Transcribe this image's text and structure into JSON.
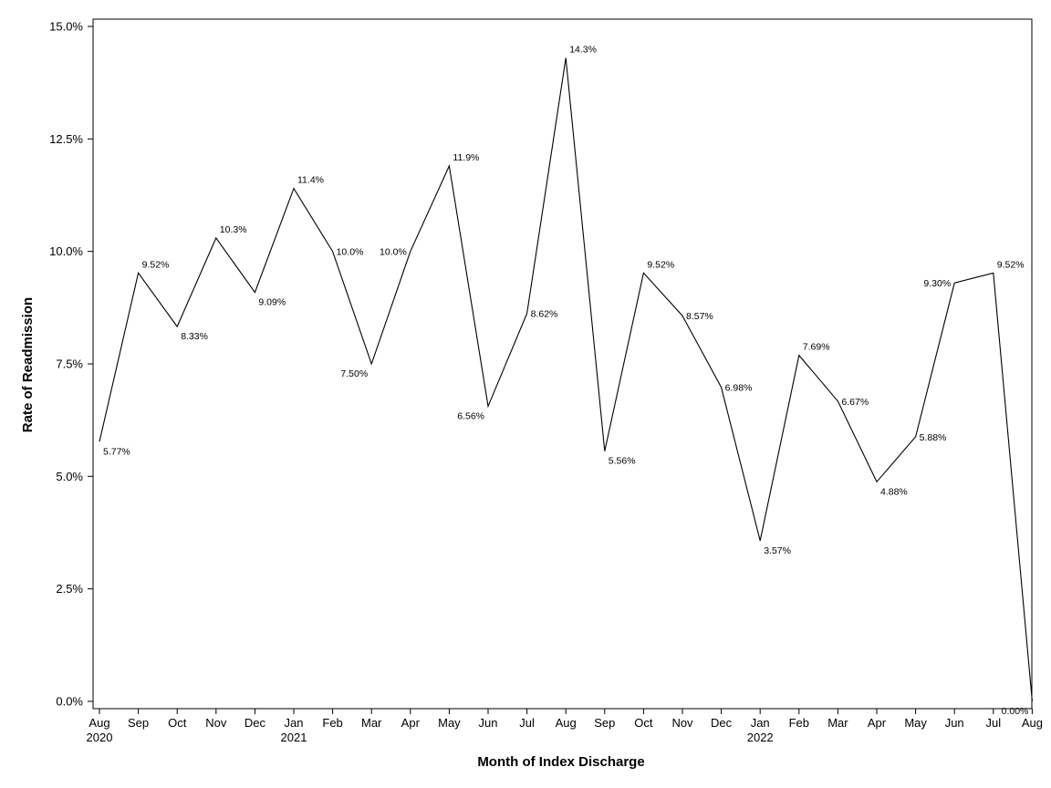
{
  "chart_data": {
    "type": "line",
    "title": "",
    "xlabel": "Month of Index Discharge",
    "ylabel": "Rate of Readmission",
    "ylim": [
      0,
      15
    ],
    "grid": false,
    "y_ticks": [
      "0.0%",
      "2.5%",
      "5.0%",
      "7.5%",
      "10.0%",
      "12.5%",
      "15.0%"
    ],
    "y_tick_values": [
      0,
      2.5,
      5,
      7.5,
      10,
      12.5,
      15
    ],
    "categories": [
      "Aug",
      "Sep",
      "Oct",
      "Nov",
      "Dec",
      "Jan",
      "Feb",
      "Mar",
      "Apr",
      "May",
      "Jun",
      "Jul",
      "Aug",
      "Sep",
      "Oct",
      "Nov",
      "Dec",
      "Jan",
      "Feb",
      "Mar",
      "Apr",
      "May",
      "Jun",
      "Jul",
      "Aug"
    ],
    "year_labels": [
      "2020",
      "",
      "",
      "",
      "",
      "2021",
      "",
      "",
      "",
      "",
      "",
      "",
      "",
      "",
      "",
      "",
      "",
      "2022",
      "",
      "",
      "",
      "",
      "",
      "",
      ""
    ],
    "series": [
      {
        "values": [
          5.77,
          9.52,
          8.33,
          10.3,
          9.09,
          11.4,
          10.0,
          7.5,
          10.0,
          11.9,
          6.56,
          8.62,
          14.3,
          5.56,
          9.52,
          8.57,
          6.98,
          3.57,
          7.69,
          6.67,
          4.88,
          5.88,
          9.3,
          9.52,
          0.0
        ],
        "labels": [
          "5.77%",
          "9.52%",
          "8.33%",
          "10.3%",
          "9.09%",
          "11.4%",
          "10.0%",
          "7.50%",
          "10.0%",
          "11.9%",
          "6.56%",
          "8.62%",
          "14.3%",
          "5.56%",
          "9.52%",
          "8.57%",
          "6.98%",
          "3.57%",
          "7.69%",
          "6.67%",
          "4.88%",
          "5.88%",
          "9.30%",
          "9.52%",
          "0.00%"
        ],
        "color": "#000000"
      }
    ]
  }
}
